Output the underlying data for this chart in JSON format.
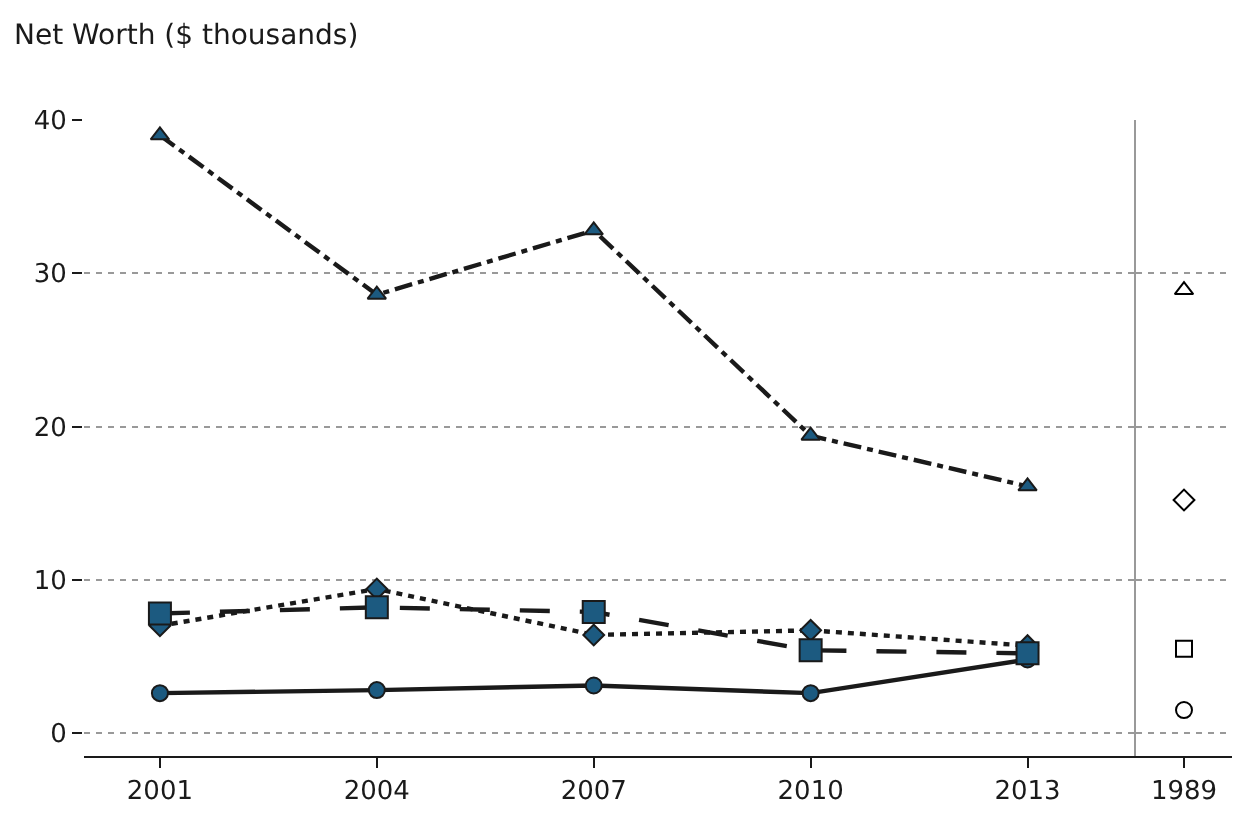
{
  "chart_data": [
    {
      "type": "line",
      "ylabel": "Net Worth ($ thousands)",
      "categories": [
        "2001",
        "2004",
        "2007",
        "2010",
        "2013"
      ],
      "ylim": [
        -1.5,
        40
      ],
      "yticks": [
        0,
        10,
        20,
        30,
        40
      ],
      "grid": "y",
      "series": [
        {
          "color": "#1c5a80",
          "marker": "triangle",
          "line_style": "dashdot",
          "values": [
            39.0,
            28.6,
            32.8,
            19.4,
            16.1
          ]
        },
        {
          "color": "#1c5a80",
          "marker": "square",
          "line_style": "dashed",
          "values": [
            7.8,
            8.2,
            7.9,
            5.4,
            5.2
          ]
        },
        {
          "color": "#1c5a80",
          "marker": "diamond",
          "line_style": "dotted",
          "values": [
            7.0,
            9.4,
            6.4,
            6.7,
            5.7
          ]
        },
        {
          "color": "#1c5a80",
          "marker": "circle",
          "line_style": "solid",
          "values": [
            2.6,
            2.8,
            3.1,
            2.6,
            4.8
          ]
        }
      ]
    },
    {
      "type": "scatter",
      "categories": [
        "1989"
      ],
      "ylim": [
        -1.5,
        40
      ],
      "yticks": [
        0,
        10,
        20,
        30,
        40
      ],
      "grid": "y",
      "tick_labels": "x",
      "series": [
        {
          "color": "#000000",
          "marker": "triangle",
          "values": [
            28.9
          ]
        },
        {
          "color": "#000000",
          "marker": "diamond",
          "values": [
            15.2
          ]
        },
        {
          "color": "#000000",
          "marker": "square",
          "values": [
            5.5
          ]
        },
        {
          "color": "#000000",
          "marker": "circle",
          "values": [
            1.5
          ]
        }
      ]
    }
  ]
}
